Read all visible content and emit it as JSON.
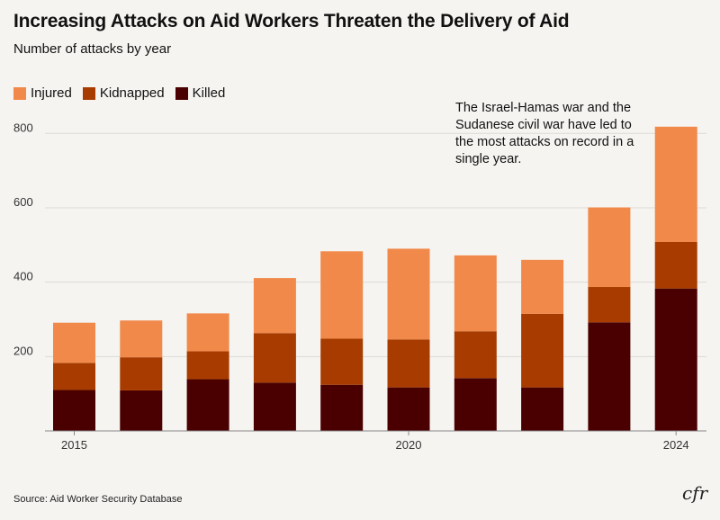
{
  "title": "Increasing Attacks on Aid Workers Threaten the Delivery of Aid",
  "subtitle": "Number of attacks by year",
  "source": "Source: Aid Worker Security Database",
  "logo_text": "cfr",
  "annotation": "The Israel-Hamas war and the Sudanese civil war have led to the most attacks on record in a single year.",
  "chart_data": {
    "type": "bar",
    "stacked": true,
    "categories": [
      2015,
      2016,
      2017,
      2018,
      2019,
      2020,
      2021,
      2022,
      2023,
      2024
    ],
    "x_tick_labels": [
      {
        "index": 0,
        "label": "2015"
      },
      {
        "index": 5,
        "label": "2020"
      },
      {
        "index": 9,
        "label": "2024"
      }
    ],
    "series": [
      {
        "name": "Killed",
        "color": "#4a0000",
        "values": [
          110,
          109,
          139,
          130,
          124,
          117,
          142,
          117,
          292,
          383
        ]
      },
      {
        "name": "Kidnapped",
        "color": "#a83c00",
        "values": [
          73,
          89,
          75,
          133,
          124,
          129,
          126,
          198,
          95,
          125
        ]
      },
      {
        "name": "Injured",
        "color": "#f0894a",
        "values": [
          108,
          99,
          102,
          148,
          235,
          244,
          204,
          145,
          214,
          310
        ]
      }
    ],
    "legend_order": [
      "Injured",
      "Kidnapped",
      "Killed"
    ],
    "legend_position": "top-left",
    "y_ticks": [
      200,
      400,
      600,
      800
    ],
    "ylim": [
      0,
      820
    ],
    "grid": true,
    "xlabel": "",
    "ylabel": ""
  }
}
